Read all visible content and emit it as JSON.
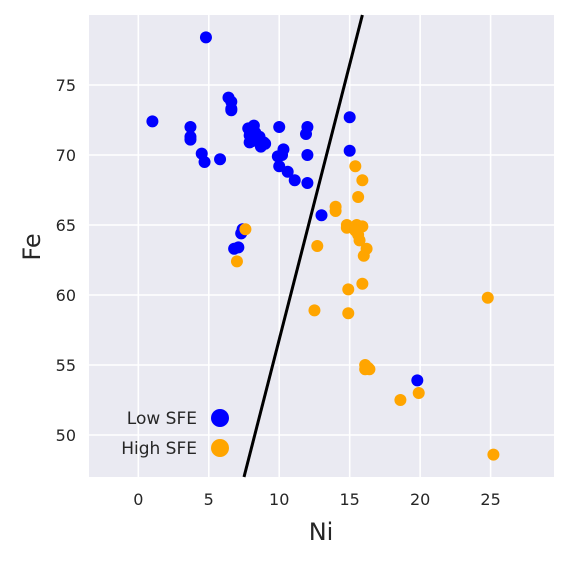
{
  "chart_data": {
    "type": "scatter",
    "title": "",
    "xlabel": "Ni",
    "ylabel": "Fe",
    "xlim": [
      -3.5,
      29.5
    ],
    "ylim": [
      47,
      80
    ],
    "x_ticks": [
      0,
      5,
      10,
      15,
      20,
      25
    ],
    "y_ticks": [
      50,
      55,
      60,
      65,
      70,
      75
    ],
    "grid": true,
    "legend_position": "bottom-left",
    "series": [
      {
        "name": "Low SFE",
        "color": "#0000ff",
        "points": [
          [
            4.8,
            78.4
          ],
          [
            1.0,
            72.4
          ],
          [
            3.7,
            72.0
          ],
          [
            3.7,
            71.3
          ],
          [
            3.7,
            71.1
          ],
          [
            6.4,
            74.1
          ],
          [
            6.6,
            73.8
          ],
          [
            6.6,
            73.3
          ],
          [
            6.6,
            73.2
          ],
          [
            4.5,
            70.1
          ],
          [
            4.7,
            69.5
          ],
          [
            5.8,
            69.7
          ],
          [
            7.8,
            71.9
          ],
          [
            8.2,
            72.1
          ],
          [
            7.9,
            71.4
          ],
          [
            8.3,
            71.6
          ],
          [
            8.6,
            71.3
          ],
          [
            8.9,
            70.9
          ],
          [
            8.7,
            70.6
          ],
          [
            9.0,
            70.8
          ],
          [
            7.9,
            70.9
          ],
          [
            8.1,
            71.0
          ],
          [
            10.0,
            72.0
          ],
          [
            12.0,
            72.0
          ],
          [
            11.9,
            71.5
          ],
          [
            10.3,
            70.4
          ],
          [
            10.2,
            70.0
          ],
          [
            9.9,
            69.9
          ],
          [
            10.0,
            69.2
          ],
          [
            10.6,
            68.8
          ],
          [
            11.1,
            68.2
          ],
          [
            12.0,
            70.0
          ],
          [
            12.0,
            68.0
          ],
          [
            15.0,
            72.7
          ],
          [
            15.0,
            70.3
          ],
          [
            13.0,
            65.7
          ],
          [
            7.4,
            64.7
          ],
          [
            7.3,
            64.4
          ],
          [
            6.8,
            63.3
          ],
          [
            7.1,
            63.4
          ],
          [
            19.8,
            53.9
          ]
        ]
      },
      {
        "name": "High SFE",
        "color": "#ffa500",
        "points": [
          [
            15.4,
            69.2
          ],
          [
            15.9,
            68.2
          ],
          [
            15.6,
            67.0
          ],
          [
            14.0,
            66.3
          ],
          [
            14.0,
            66.0
          ],
          [
            14.8,
            65.0
          ],
          [
            14.8,
            64.8
          ],
          [
            15.5,
            65.0
          ],
          [
            15.7,
            64.9
          ],
          [
            15.9,
            64.9
          ],
          [
            15.4,
            64.6
          ],
          [
            15.6,
            64.3
          ],
          [
            15.7,
            63.9
          ],
          [
            16.2,
            63.3
          ],
          [
            16.0,
            62.8
          ],
          [
            12.7,
            63.5
          ],
          [
            7.6,
            64.7
          ],
          [
            7.0,
            62.4
          ],
          [
            15.9,
            60.8
          ],
          [
            14.9,
            60.4
          ],
          [
            24.8,
            59.8
          ],
          [
            12.5,
            58.9
          ],
          [
            14.9,
            58.7
          ],
          [
            16.1,
            55.0
          ],
          [
            16.1,
            54.7
          ],
          [
            16.3,
            54.8
          ],
          [
            16.4,
            54.7
          ],
          [
            19.9,
            53.0
          ],
          [
            18.6,
            52.5
          ],
          [
            25.2,
            48.6
          ]
        ]
      }
    ],
    "lines": [
      {
        "color": "#000000",
        "points": [
          [
            7.5,
            47.0
          ],
          [
            15.9,
            80.0
          ]
        ]
      }
    ]
  }
}
